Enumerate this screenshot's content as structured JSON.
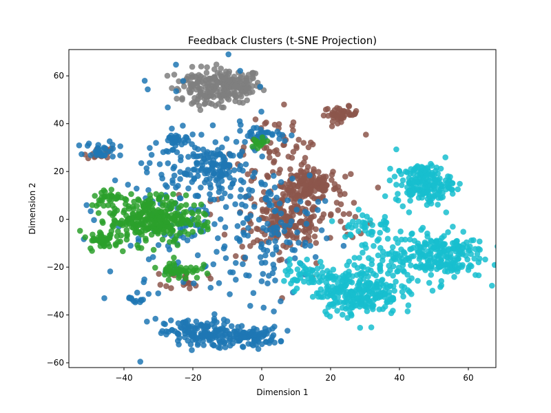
{
  "chart_data": {
    "type": "scatter",
    "title": "Feedback Clusters (t-SNE Projection)",
    "xlabel": "Dimension 1",
    "ylabel": "Dimension 2",
    "xlim": [
      -56,
      68
    ],
    "ylim": [
      -62,
      71
    ],
    "xticks": [
      -40,
      -20,
      0,
      20,
      40,
      60
    ],
    "yticks": [
      -60,
      -40,
      -20,
      0,
      20,
      40,
      60
    ],
    "grid": false,
    "legend": "none",
    "colors": {
      "gray": "#7f7f7f",
      "brown": "#8c564b",
      "blue": "#1f77b4",
      "green": "#2ca02c",
      "cyan": "#17becf"
    },
    "clusters": [
      {
        "color": "gray",
        "center": [
          -10,
          56
        ],
        "spread": [
          5,
          3.5
        ],
        "count": 180
      },
      {
        "color": "gray",
        "center": [
          -20,
          57
        ],
        "spread": [
          3,
          3
        ],
        "count": 40
      },
      {
        "color": "gray",
        "center": [
          -16,
          50
        ],
        "spread": [
          3,
          2
        ],
        "count": 25
      },
      {
        "color": "brown",
        "center": [
          23,
          44
        ],
        "spread": [
          2.5,
          1.5
        ],
        "count": 45
      },
      {
        "color": "brown",
        "center": [
          14,
          14
        ],
        "spread": [
          4,
          3
        ],
        "count": 120
      },
      {
        "color": "brown",
        "center": [
          8,
          -1
        ],
        "spread": [
          5,
          4
        ],
        "count": 130
      },
      {
        "color": "brown",
        "center": [
          8,
          7
        ],
        "spread": [
          11,
          14
        ],
        "count": 150
      },
      {
        "color": "brown",
        "center": [
          -47,
          28
        ],
        "spread": [
          2,
          1.5
        ],
        "count": 15
      },
      {
        "color": "brown",
        "center": [
          -22,
          -25
        ],
        "spread": [
          3,
          2
        ],
        "count": 20
      },
      {
        "color": "brown",
        "center": [
          2,
          34
        ],
        "spread": [
          7,
          6
        ],
        "count": 30
      },
      {
        "color": "blue",
        "center": [
          -18,
          -48
        ],
        "spread": [
          5,
          3
        ],
        "count": 140
      },
      {
        "color": "blue",
        "center": [
          -3,
          -49
        ],
        "spread": [
          4,
          2
        ],
        "count": 90
      },
      {
        "color": "blue",
        "center": [
          -13,
          21
        ],
        "spread": [
          4,
          4
        ],
        "count": 90
      },
      {
        "color": "blue",
        "center": [
          -20,
          5
        ],
        "spread": [
          12,
          22
        ],
        "count": 240
      },
      {
        "color": "blue",
        "center": [
          3,
          -5
        ],
        "spread": [
          7,
          15
        ],
        "count": 100
      },
      {
        "color": "blue",
        "center": [
          -47,
          29
        ],
        "spread": [
          2,
          1.5
        ],
        "count": 25
      },
      {
        "color": "blue",
        "center": [
          -36,
          -33
        ],
        "spread": [
          1.5,
          1.5
        ],
        "count": 12
      },
      {
        "color": "blue",
        "center": [
          0,
          36
        ],
        "spread": [
          4,
          1.5
        ],
        "count": 30
      },
      {
        "color": "blue",
        "center": [
          -26,
          32
        ],
        "spread": [
          2,
          2
        ],
        "count": 25
      },
      {
        "color": "green",
        "center": [
          -33,
          0
        ],
        "spread": [
          5.5,
          5
        ],
        "count": 260
      },
      {
        "color": "green",
        "center": [
          -46,
          -9
        ],
        "spread": [
          2,
          2
        ],
        "count": 40
      },
      {
        "color": "green",
        "center": [
          -44,
          9
        ],
        "spread": [
          3,
          2
        ],
        "count": 30
      },
      {
        "color": "green",
        "center": [
          -24,
          -21
        ],
        "spread": [
          3,
          2
        ],
        "count": 45
      },
      {
        "color": "green",
        "center": [
          -22,
          0
        ],
        "spread": [
          4,
          4
        ],
        "count": 40
      },
      {
        "color": "green",
        "center": [
          -1,
          32
        ],
        "spread": [
          2,
          1.5
        ],
        "count": 15
      },
      {
        "color": "cyan",
        "center": [
          47,
          15
        ],
        "spread": [
          4,
          4
        ],
        "count": 180
      },
      {
        "color": "cyan",
        "center": [
          51,
          -15
        ],
        "spread": [
          7,
          5
        ],
        "count": 220
      },
      {
        "color": "cyan",
        "center": [
          28,
          -30
        ],
        "spread": [
          6,
          5
        ],
        "count": 260
      },
      {
        "color": "cyan",
        "center": [
          30,
          -3
        ],
        "spread": [
          4,
          4
        ],
        "count": 40
      },
      {
        "color": "cyan",
        "center": [
          14,
          -23
        ],
        "spread": [
          4,
          3
        ],
        "count": 50
      },
      {
        "color": "cyan",
        "center": [
          38,
          -20
        ],
        "spread": [
          6,
          6
        ],
        "count": 50
      }
    ]
  }
}
